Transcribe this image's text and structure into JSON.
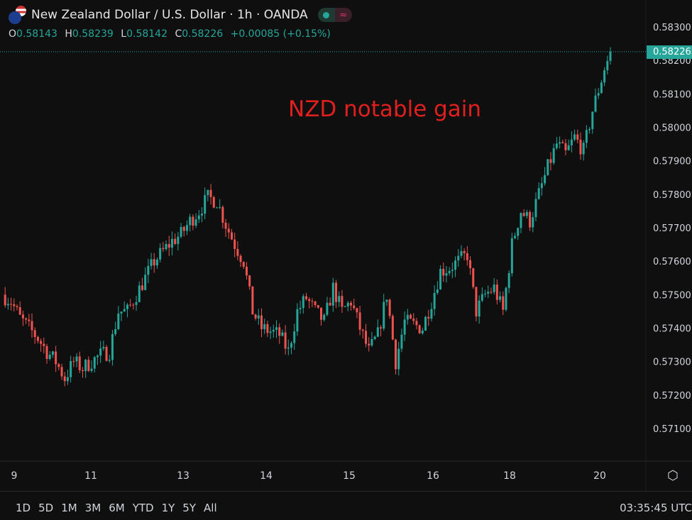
{
  "header": {
    "title": "New Zealand Dollar / U.S. Dollar · 1h · OANDA",
    "status_icon": "market-open-dot",
    "wave_icon": "approx-icon"
  },
  "ohlc": {
    "o_label": "O",
    "o": "0.58143",
    "h_label": "H",
    "h": "0.58239",
    "l_label": "L",
    "l": "0.58142",
    "c_label": "C",
    "c": "0.58226",
    "change": "+0.00085 (+0.15%)"
  },
  "annotation": "NZD notable gain",
  "current_price": "0.58226",
  "toolbar": {
    "ranges": [
      "1D",
      "5D",
      "1M",
      "3M",
      "6M",
      "YTD",
      "1Y",
      "5Y",
      "All"
    ],
    "clock": "03:35:45 UTC"
  },
  "colors": {
    "up": "#26a69a",
    "down": "#ef5350",
    "background": "#0f0f0f",
    "annotation": "#e01f1f"
  },
  "chart_data": {
    "type": "candlestick",
    "title": "New Zealand Dollar / U.S. Dollar · 1h · OANDA",
    "ylim": [
      0.5705,
      0.5832
    ],
    "yticks": [
      "0.58300",
      "0.58200",
      "0.58100",
      "0.58000",
      "0.57900",
      "0.57800",
      "0.57700",
      "0.57600",
      "0.57500",
      "0.57400",
      "0.57300",
      "0.57200",
      "0.57100"
    ],
    "xticks": [
      "9",
      "11",
      "13",
      "14",
      "15",
      "16",
      "18",
      "20"
    ],
    "grid": false,
    "approx_closes": [
      0.575,
      0.5748,
      0.5743,
      0.574,
      0.5737,
      0.5733,
      0.573,
      0.5725,
      0.573,
      0.5728,
      0.573,
      0.5732,
      0.5733,
      0.5745,
      0.5745,
      0.575,
      0.5755,
      0.576,
      0.5763,
      0.5766,
      0.5768,
      0.5772,
      0.5775,
      0.5779,
      0.5778,
      0.5771,
      0.5765,
      0.576,
      0.5745,
      0.574,
      0.5739,
      0.5738,
      0.5733,
      0.5745,
      0.5749,
      0.5745,
      0.5742,
      0.5752,
      0.5745,
      0.5748,
      0.574,
      0.5733,
      0.5738,
      0.575,
      0.573,
      0.5742,
      0.5741,
      0.574,
      0.5748,
      0.5757,
      0.5758,
      0.576,
      0.5762,
      0.5745,
      0.575,
      0.5752,
      0.5745,
      0.5765,
      0.5775,
      0.5772,
      0.578,
      0.5788,
      0.5795,
      0.5792,
      0.5797,
      0.5793,
      0.5805,
      0.58143,
      0.58226
    ]
  }
}
